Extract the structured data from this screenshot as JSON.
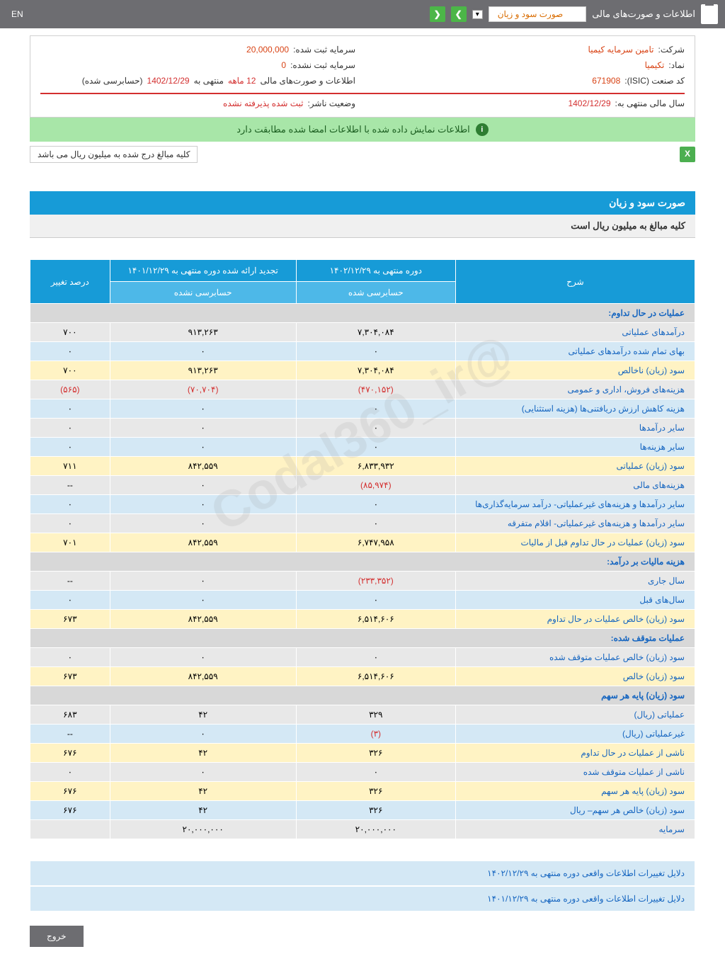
{
  "header": {
    "title": "اطلاعات و صورت‌های مالی",
    "dropdown": "صورت سود و زیان",
    "lang": "EN"
  },
  "info": {
    "company_label": "شرکت:",
    "company_value": "تامین سرمایه کیمیا",
    "capital_reg_label": "سرمایه ثبت شده:",
    "capital_reg_value": "20,000,000",
    "symbol_label": "نماد:",
    "symbol_value": "تکیمیا",
    "capital_unreg_label": "سرمایه ثبت نشده:",
    "capital_unreg_value": "0",
    "isic_label": "کد صنعت (ISIC):",
    "isic_value": "671908",
    "statements_label": "اطلاعات و صورت‌های مالی",
    "statements_value_pre": "12 ماهه",
    "statements_value_mid": "منتهی به",
    "statements_date": "1402/12/29",
    "statements_audit": "(حسابرسی شده)",
    "fiscal_label": "سال مالی منتهی به:",
    "fiscal_value": "1402/12/29",
    "status_label": "وضعیت ناشر:",
    "status_value": "ثبت شده پذیرفته نشده"
  },
  "banner": "اطلاعات نمایش داده شده با اطلاعات امضا شده مطابقت دارد",
  "note": "کلیه مبالغ درج شده به میلیون ریال می باشد",
  "section_title": "صورت سود و زیان",
  "section_sub": "کلیه مبالغ به میلیون ریال است",
  "table": {
    "headers": {
      "desc": "شرح",
      "period1": "دوره منتهی به ۱۴۰۲/۱۲/۲۹",
      "period2": "تجدید ارائه شده دوره منتهی به ۱۴۰۱/۱۲/۲۹",
      "change": "درصد تغییر",
      "audited": "حسابرسی شده",
      "unaudited": "حسابرسی نشده"
    },
    "rows": [
      {
        "type": "header",
        "label": "عملیات در حال تداوم:"
      },
      {
        "type": "white",
        "label": "درآمدهای عملیاتی",
        "p1": "۷,۳۰۴,۰۸۴",
        "p2": "۹۱۳,۲۶۳",
        "chg": "۷۰۰"
      },
      {
        "type": "blue",
        "label": "بهای تمام شده درآمدهای عملیاتی",
        "p1": "۰",
        "p2": "۰",
        "chg": "۰"
      },
      {
        "type": "yellow",
        "label": "سود (زیان) ناخالص",
        "p1": "۷,۳۰۴,۰۸۴",
        "p2": "۹۱۳,۲۶۳",
        "chg": "۷۰۰"
      },
      {
        "type": "white",
        "label": "هزینه‌های فروش، اداری و عمومی",
        "p1": "(۴۷۰,۱۵۲)",
        "p1_neg": true,
        "p2": "(۷۰,۷۰۴)",
        "p2_neg": true,
        "chg": "(۵۶۵)",
        "chg_neg": true
      },
      {
        "type": "blue",
        "label": "هزینه کاهش ارزش دریافتنی‌ها (هزینه استثنایی)",
        "p1": "۰",
        "p2": "۰",
        "chg": "۰"
      },
      {
        "type": "white",
        "label": "سایر درآمدها",
        "p1": "۰",
        "p2": "۰",
        "chg": "۰"
      },
      {
        "type": "blue",
        "label": "سایر هزینه‌ها",
        "p1": "۰",
        "p2": "۰",
        "chg": "۰"
      },
      {
        "type": "yellow",
        "label": "سود (زیان) عملیاتی",
        "p1": "۶,۸۳۳,۹۳۲",
        "p2": "۸۴۲,۵۵۹",
        "chg": "۷۱۱"
      },
      {
        "type": "white",
        "label": "هزینه‌های مالی",
        "p1": "(۸۵,۹۷۴)",
        "p1_neg": true,
        "p2": "۰",
        "chg": "--"
      },
      {
        "type": "blue",
        "label": "سایر درآمدها و هزینه‌های غیرعملیاتی- درآمد سرمایه‌گذاری‌ها",
        "p1": "۰",
        "p2": "۰",
        "chg": "۰"
      },
      {
        "type": "white",
        "label": "سایر درآمدها و هزینه‌های غیرعملیاتی- اقلام متفرقه",
        "p1": "۰",
        "p2": "۰",
        "chg": "۰"
      },
      {
        "type": "yellow",
        "label": "سود (زیان) عملیات در حال تداوم قبل از مالیات",
        "p1": "۶,۷۴۷,۹۵۸",
        "p2": "۸۴۲,۵۵۹",
        "chg": "۷۰۱"
      },
      {
        "type": "header",
        "label": "هزینه مالیات بر درآمد:"
      },
      {
        "type": "white",
        "label": "سال جاری",
        "p1": "(۲۳۳,۳۵۲)",
        "p1_neg": true,
        "p2": "۰",
        "chg": "--"
      },
      {
        "type": "blue",
        "label": "سال‌های قبل",
        "p1": "۰",
        "p2": "۰",
        "chg": "۰"
      },
      {
        "type": "yellow",
        "label": "سود (زیان) خالص عملیات در حال تداوم",
        "p1": "۶,۵۱۴,۶۰۶",
        "p2": "۸۴۲,۵۵۹",
        "chg": "۶۷۳"
      },
      {
        "type": "header",
        "label": "عملیات متوقف شده:"
      },
      {
        "type": "white",
        "label": "سود (زیان) خالص عملیات متوقف شده",
        "p1": "۰",
        "p2": "۰",
        "chg": "۰"
      },
      {
        "type": "yellow",
        "label": "سود (زیان) خالص",
        "p1": "۶,۵۱۴,۶۰۶",
        "p2": "۸۴۲,۵۵۹",
        "chg": "۶۷۳"
      },
      {
        "type": "header",
        "label": "سود (زیان) پایه هر سهم"
      },
      {
        "type": "white",
        "label": "عملیاتی (ریال)",
        "p1": "۳۲۹",
        "p2": "۴۲",
        "chg": "۶۸۳"
      },
      {
        "type": "blue",
        "label": "غیرعملیاتی (ریال)",
        "p1": "(۳)",
        "p1_neg": true,
        "p2": "۰",
        "chg": "--"
      },
      {
        "type": "yellow",
        "label": "ناشی از عملیات در حال تداوم",
        "p1": "۳۲۶",
        "p2": "۴۲",
        "chg": "۶۷۶"
      },
      {
        "type": "white",
        "label": "ناشی از عملیات متوقف شده",
        "p1": "۰",
        "p2": "۰",
        "chg": "۰"
      },
      {
        "type": "yellow",
        "label": "سود (زیان) پایه هر سهم",
        "p1": "۳۲۶",
        "p2": "۴۲",
        "chg": "۶۷۶"
      },
      {
        "type": "blue",
        "label": "سود (زیان) خالص هر سهم– ریال",
        "p1": "۳۲۶",
        "p2": "۴۲",
        "chg": "۶۷۶"
      },
      {
        "type": "white",
        "label": "سرمایه",
        "p1": "۲۰,۰۰۰,۰۰۰",
        "p2": "۲۰,۰۰۰,۰۰۰",
        "chg": ""
      }
    ]
  },
  "footer": {
    "row1": "دلایل تغییرات اطلاعات واقعی دوره منتهی به ۱۴۰۲/۱۲/۲۹",
    "row2": "دلایل تغییرات اطلاعات واقعی دوره منتهی به ۱۴۰۱/۱۲/۲۹"
  },
  "exit": "خروج",
  "watermark": "@Codal360_ir"
}
